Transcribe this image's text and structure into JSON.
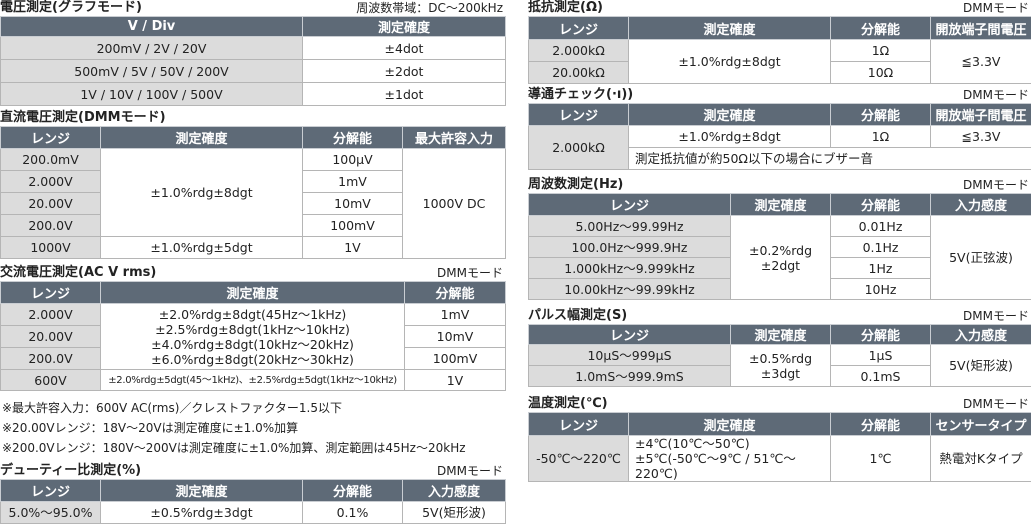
{
  "sections": [
    {
      "id": "voltage-graph",
      "title": "電圧測定(グラフモード)",
      "note": "周波数帯域：DC〜200kHz",
      "headers": [
        "V / Div",
        "測定確度"
      ],
      "rows": [
        [
          {
            "t": "200mV / 2V / 20V",
            "r": 1
          },
          {
            "t": "±4dot"
          }
        ],
        [
          {
            "t": "500mV / 5V / 50V / 200V",
            "r": 1
          },
          {
            "t": "±2dot"
          }
        ],
        [
          {
            "t": "1V / 10V / 100V / 500V",
            "r": 1
          },
          {
            "t": "±1dot"
          }
        ]
      ]
    },
    {
      "id": "dc-voltage",
      "title": "直流電圧測定(DMMモード)",
      "note": "",
      "headers": [
        "レンジ",
        "測定確度",
        "分解能",
        "最大許容入力"
      ],
      "rows": [
        [
          {
            "t": "200.0mV",
            "r": 1
          },
          {
            "t": "±1.0%rdg±8dgt",
            "rs": 4
          },
          {
            "t": "100μV"
          },
          {
            "t": "1000V DC",
            "rs": 5
          }
        ],
        [
          {
            "t": "2.000V",
            "r": 1
          },
          {
            "t": "1mV"
          }
        ],
        [
          {
            "t": "20.00V",
            "r": 1
          },
          {
            "t": "10mV"
          }
        ],
        [
          {
            "t": "200.0V",
            "r": 1
          },
          {
            "t": "100mV"
          }
        ],
        [
          {
            "t": "1000V",
            "r": 1
          },
          {
            "t": "±1.0%rdg±5dgt"
          },
          {
            "t": "1V"
          }
        ]
      ]
    },
    {
      "id": "ac-voltage",
      "title": "交流電圧測定(AC V rms)",
      "note": "DMMモード",
      "headers": [
        "レンジ",
        "測定確度",
        "分解能"
      ],
      "rows": [
        [
          {
            "t": "2.000V",
            "r": 1
          },
          {
            "t": "±2.0%rdg±8dgt(45Hz〜1kHz)\n±2.5%rdg±8dgt(1kHz〜10kHz)\n±4.0%rdg±8dgt(10kHz〜20kHz)\n±6.0%rdg±8dgt(20kHz〜30kHz)",
            "rs": 3
          },
          {
            "t": "1mV"
          }
        ],
        [
          {
            "t": "20.00V",
            "r": 1
          },
          {
            "t": "10mV"
          }
        ],
        [
          {
            "t": "200.0V",
            "r": 1
          },
          {
            "t": "100mV"
          }
        ],
        [
          {
            "t": "600V",
            "r": 1
          },
          {
            "t": "±2.0%rdg±5dgt(45〜1kHz)、±2.5%rdg±5dgt(1kHz〜10kHz)",
            "sm": 1
          },
          {
            "t": "1V"
          }
        ]
      ]
    },
    {
      "id": "duty",
      "title": "デューティー比測定(%)",
      "note": "DMMモード",
      "headers": [
        "レンジ",
        "測定確度",
        "分解能",
        "入力感度"
      ],
      "rows": [
        [
          {
            "t": "5.0%〜95.0%",
            "r": 1
          },
          {
            "t": "±0.5%rdg±3dgt"
          },
          {
            "t": "0.1%"
          },
          {
            "t": "5V(矩形波)"
          }
        ]
      ]
    },
    {
      "id": "resistance",
      "title": "抵抗測定(Ω)",
      "note": "DMMモード",
      "headers": [
        "レンジ",
        "測定確度",
        "分解能",
        "開放端子間電圧"
      ],
      "rows": [
        [
          {
            "t": "2.000kΩ",
            "r": 1
          },
          {
            "t": "±1.0%rdg±8dgt",
            "rs": 2
          },
          {
            "t": "1Ω"
          },
          {
            "t": "≦3.3V",
            "rs": 2
          }
        ],
        [
          {
            "t": "20.00kΩ",
            "r": 1
          },
          {
            "t": "10Ω"
          }
        ]
      ]
    },
    {
      "id": "continuity",
      "title": "導通チェック(·ı))",
      "note": "DMMモード",
      "headers": [
        "レンジ",
        "測定確度",
        "分解能",
        "開放端子間電圧"
      ],
      "rows": [
        [
          {
            "t": "2.000kΩ",
            "r": 1,
            "rs": 2
          },
          {
            "t": "±1.0%rdg±8dgt"
          },
          {
            "t": "1Ω"
          },
          {
            "t": "≦3.3V"
          }
        ],
        [
          {
            "t": "測定抵抗値が約50Ω以下の場合にブザー音",
            "cs": 3,
            "l": 1
          }
        ]
      ]
    },
    {
      "id": "frequency",
      "title": "周波数測定(Hz)",
      "note": "DMMモード",
      "headers": [
        "レンジ",
        "測定確度",
        "分解能",
        "入力感度"
      ],
      "rows": [
        [
          {
            "t": "5.00Hz〜99.99Hz",
            "r": 1
          },
          {
            "t": "±0.2%rdg\n±2dgt",
            "rs": 4
          },
          {
            "t": "0.01Hz"
          },
          {
            "t": "5V(正弦波)",
            "rs": 4
          }
        ],
        [
          {
            "t": "100.0Hz〜999.9Hz",
            "r": 1
          },
          {
            "t": "0.1Hz"
          }
        ],
        [
          {
            "t": "1.000kHz〜9.999kHz",
            "r": 1
          },
          {
            "t": "1Hz"
          }
        ],
        [
          {
            "t": "10.00kHz〜99.99kHz",
            "r": 1
          },
          {
            "t": "10Hz"
          }
        ]
      ]
    },
    {
      "id": "pulse-width",
      "title": "パルス幅測定(S)",
      "note": "DMMモード",
      "headers": [
        "レンジ",
        "測定確度",
        "分解能",
        "入力感度"
      ],
      "rows": [
        [
          {
            "t": "10μS〜999μS",
            "r": 1
          },
          {
            "t": "±0.5%rdg\n±3dgt",
            "rs": 2
          },
          {
            "t": "1μS"
          },
          {
            "t": "5V(矩形波)",
            "rs": 2
          }
        ],
        [
          {
            "t": "1.0mS〜999.9mS",
            "r": 1
          },
          {
            "t": "0.1mS"
          }
        ]
      ]
    },
    {
      "id": "temperature",
      "title": "温度測定(℃)",
      "note": "DMMモード",
      "headers": [
        "レンジ",
        "測定確度",
        "分解能",
        "センサータイプ"
      ],
      "rows": [
        [
          {
            "t": "-50℃〜220℃",
            "r": 1
          },
          {
            "t": "±4℃(10℃〜50℃)\n±5℃(-50℃〜9℃ / 51℃〜220℃)",
            "l": 1
          },
          {
            "t": "1℃"
          },
          {
            "t": "熱電対Kタイプ"
          }
        ]
      ]
    }
  ],
  "notes": [
    "※最大許容入力：600V AC(rms)／クレストファクター1.5以下",
    "※20.00Vレンジ：18V〜20Vは測定確度に±1.0%加算",
    "※200.0Vレンジ：180V〜200Vは測定確度に±1.0%加算、測定範囲は45Hz〜20kHz"
  ],
  "colors": {
    "header": "#5e6a77",
    "range_cell": "#dcdcdc"
  }
}
